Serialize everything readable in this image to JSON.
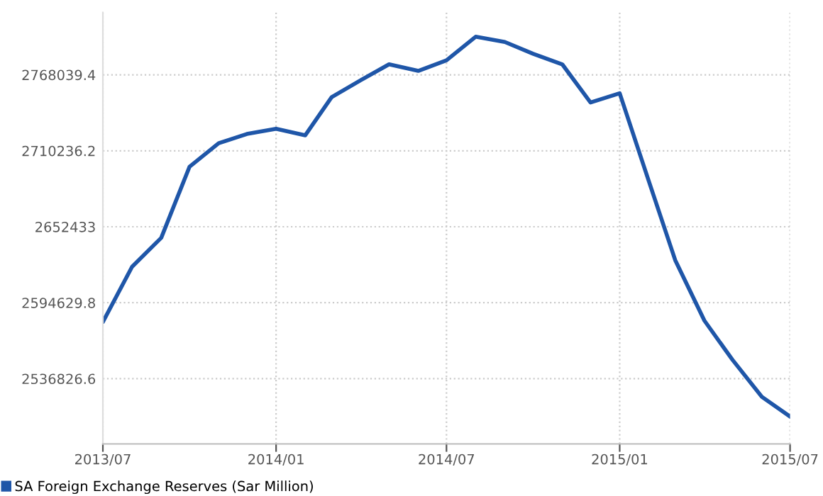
{
  "chart_data": {
    "type": "line",
    "x": [
      "2013-07",
      "2013-08",
      "2013-09",
      "2013-10",
      "2013-11",
      "2013-12",
      "2014-01",
      "2014-02",
      "2014-03",
      "2014-04",
      "2014-05",
      "2014-06",
      "2014-07",
      "2014-08",
      "2014-09",
      "2014-10",
      "2014-11",
      "2014-12",
      "2015-01",
      "2015-02",
      "2015-03",
      "2015-04",
      "2015-05",
      "2015-06",
      "2015-07"
    ],
    "series": [
      {
        "name": "SA Foreign Exchange Reserves (Sar Million)",
        "color": "#1f56a8",
        "values": [
          2580000,
          2622000,
          2644000,
          2698000,
          2716000,
          2723000,
          2727000,
          2722000,
          2751000,
          2764000,
          2776000,
          2771000,
          2779000,
          2797000,
          2793000,
          2784000,
          2776000,
          2747000,
          2754000,
          2687000,
          2627000,
          2581000,
          2551000,
          2523000,
          2508000
        ]
      }
    ],
    "xlim": [
      "2013-07",
      "2015-07"
    ],
    "xticks": [
      {
        "value": "2013-07",
        "label": "2013/07"
      },
      {
        "value": "2014-01",
        "label": "2014/01"
      },
      {
        "value": "2014-07",
        "label": "2014/07"
      },
      {
        "value": "2015-01",
        "label": "2015/01"
      },
      {
        "value": "2015-07",
        "label": "2015/07"
      }
    ],
    "ylim": [
      2487200,
      2815500
    ],
    "yticks": [
      2536826.6,
      2594629.8,
      2652433,
      2710236.2,
      2768039.4
    ],
    "grid": true,
    "legend": "bottom left",
    "marker": "none",
    "line_style": "solid"
  }
}
